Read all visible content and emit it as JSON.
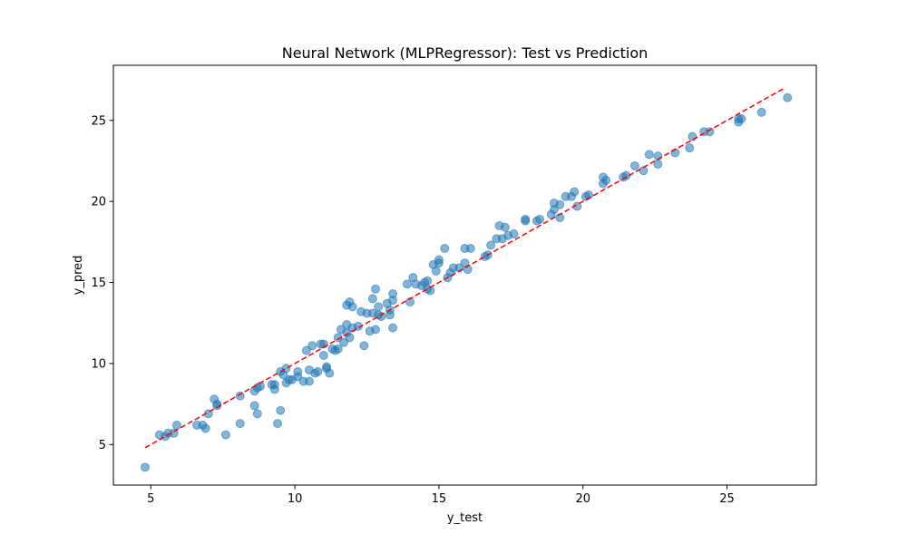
{
  "chart_data": {
    "type": "scatter",
    "title": "Neural Network (MLPRegressor): Test vs Prediction",
    "xlabel": "y_test",
    "ylabel": "y_pred",
    "xlim": [
      3.7,
      28.1
    ],
    "ylim": [
      2.5,
      28.4
    ],
    "xticks": [
      5,
      10,
      15,
      20,
      25
    ],
    "yticks": [
      5,
      10,
      15,
      20,
      25
    ],
    "grid": false,
    "colors": {
      "points": "#1f77b4",
      "reference_line": "#ff0000"
    },
    "reference_line": {
      "name": "",
      "style": "dashed",
      "x": [
        4.8,
        27.0
      ],
      "y": [
        4.8,
        27.0
      ]
    },
    "series": [
      {
        "points": [
          [
            4.8,
            3.6
          ],
          [
            5.3,
            5.6
          ],
          [
            5.5,
            5.5
          ],
          [
            5.6,
            5.7
          ],
          [
            5.8,
            5.7
          ],
          [
            5.9,
            6.2
          ],
          [
            6.6,
            6.2
          ],
          [
            6.8,
            6.2
          ],
          [
            6.9,
            6.0
          ],
          [
            7.0,
            6.9
          ],
          [
            7.2,
            7.8
          ],
          [
            7.3,
            7.5
          ],
          [
            7.3,
            7.4
          ],
          [
            7.6,
            5.6
          ],
          [
            8.1,
            8.0
          ],
          [
            8.1,
            6.3
          ],
          [
            8.6,
            8.3
          ],
          [
            8.6,
            7.4
          ],
          [
            8.7,
            8.5
          ],
          [
            8.7,
            6.9
          ],
          [
            8.8,
            8.6
          ],
          [
            9.2,
            8.7
          ],
          [
            9.3,
            8.7
          ],
          [
            9.3,
            8.4
          ],
          [
            9.4,
            6.3
          ],
          [
            9.5,
            9.5
          ],
          [
            9.5,
            7.1
          ],
          [
            9.6,
            9.3
          ],
          [
            9.7,
            9.7
          ],
          [
            9.7,
            8.8
          ],
          [
            9.8,
            9.0
          ],
          [
            9.9,
            9.0
          ],
          [
            10.1,
            9.5
          ],
          [
            10.1,
            9.2
          ],
          [
            10.3,
            8.9
          ],
          [
            10.4,
            10.8
          ],
          [
            10.5,
            9.6
          ],
          [
            10.5,
            8.9
          ],
          [
            10.6,
            11.1
          ],
          [
            10.7,
            9.4
          ],
          [
            10.8,
            9.5
          ],
          [
            10.9,
            11.2
          ],
          [
            11.0,
            10.5
          ],
          [
            11.0,
            11.2
          ],
          [
            11.1,
            9.8
          ],
          [
            11.1,
            9.7
          ],
          [
            11.2,
            9.4
          ],
          [
            11.3,
            10.9
          ],
          [
            11.4,
            10.8
          ],
          [
            11.5,
            11.6
          ],
          [
            11.5,
            10.9
          ],
          [
            11.6,
            12.1
          ],
          [
            11.7,
            11.3
          ],
          [
            11.8,
            11.9
          ],
          [
            11.8,
            12.4
          ],
          [
            11.8,
            13.6
          ],
          [
            11.9,
            11.6
          ],
          [
            11.9,
            13.8
          ],
          [
            12.0,
            12.2
          ],
          [
            12.0,
            13.5
          ],
          [
            12.2,
            12.3
          ],
          [
            12.3,
            13.2
          ],
          [
            12.4,
            11.1
          ],
          [
            12.5,
            13.1
          ],
          [
            12.6,
            12.0
          ],
          [
            12.7,
            13.1
          ],
          [
            12.7,
            14.0
          ],
          [
            12.8,
            14.6
          ],
          [
            12.8,
            12.1
          ],
          [
            12.9,
            13.5
          ],
          [
            12.9,
            13.0
          ],
          [
            13.0,
            12.9
          ],
          [
            13.2,
            13.7
          ],
          [
            13.3,
            13.3
          ],
          [
            13.3,
            13.0
          ],
          [
            13.4,
            14.3
          ],
          [
            13.4,
            13.9
          ],
          [
            13.4,
            12.2
          ],
          [
            13.9,
            14.9
          ],
          [
            14.0,
            13.8
          ],
          [
            14.1,
            15.3
          ],
          [
            14.2,
            14.9
          ],
          [
            14.4,
            14.8
          ],
          [
            14.5,
            15.0
          ],
          [
            14.6,
            15.1
          ],
          [
            14.6,
            14.6
          ],
          [
            14.7,
            14.5
          ],
          [
            14.8,
            16.1
          ],
          [
            14.9,
            15.7
          ],
          [
            15.0,
            16.2
          ],
          [
            15.0,
            16.4
          ],
          [
            15.2,
            17.1
          ],
          [
            15.3,
            15.3
          ],
          [
            15.4,
            15.6
          ],
          [
            15.5,
            15.9
          ],
          [
            15.7,
            15.9
          ],
          [
            15.9,
            16.2
          ],
          [
            15.9,
            17.1
          ],
          [
            16.0,
            15.8
          ],
          [
            16.1,
            17.1
          ],
          [
            16.6,
            16.6
          ],
          [
            16.7,
            16.7
          ],
          [
            16.8,
            17.3
          ],
          [
            17.0,
            17.7
          ],
          [
            17.1,
            18.5
          ],
          [
            17.2,
            17.7
          ],
          [
            17.3,
            18.4
          ],
          [
            17.4,
            17.9
          ],
          [
            17.6,
            18.0
          ],
          [
            18.0,
            18.8
          ],
          [
            18.0,
            18.9
          ],
          [
            18.4,
            18.8
          ],
          [
            18.5,
            18.9
          ],
          [
            18.9,
            19.2
          ],
          [
            19.0,
            19.5
          ],
          [
            19.0,
            19.9
          ],
          [
            19.2,
            19.0
          ],
          [
            19.2,
            19.8
          ],
          [
            19.4,
            20.3
          ],
          [
            19.6,
            20.3
          ],
          [
            19.7,
            20.6
          ],
          [
            19.8,
            19.7
          ],
          [
            20.1,
            20.3
          ],
          [
            20.2,
            20.4
          ],
          [
            20.7,
            21.1
          ],
          [
            20.7,
            21.5
          ],
          [
            20.8,
            21.3
          ],
          [
            21.4,
            21.5
          ],
          [
            21.5,
            21.6
          ],
          [
            21.8,
            22.2
          ],
          [
            22.1,
            21.9
          ],
          [
            22.3,
            22.9
          ],
          [
            22.6,
            22.3
          ],
          [
            22.6,
            22.8
          ],
          [
            23.2,
            23.0
          ],
          [
            23.7,
            23.3
          ],
          [
            23.8,
            24.0
          ],
          [
            24.2,
            24.3
          ],
          [
            24.4,
            24.3
          ],
          [
            25.4,
            24.9
          ],
          [
            25.4,
            25.1
          ],
          [
            25.5,
            25.1
          ],
          [
            26.2,
            25.5
          ],
          [
            27.1,
            26.4
          ]
        ]
      }
    ]
  }
}
